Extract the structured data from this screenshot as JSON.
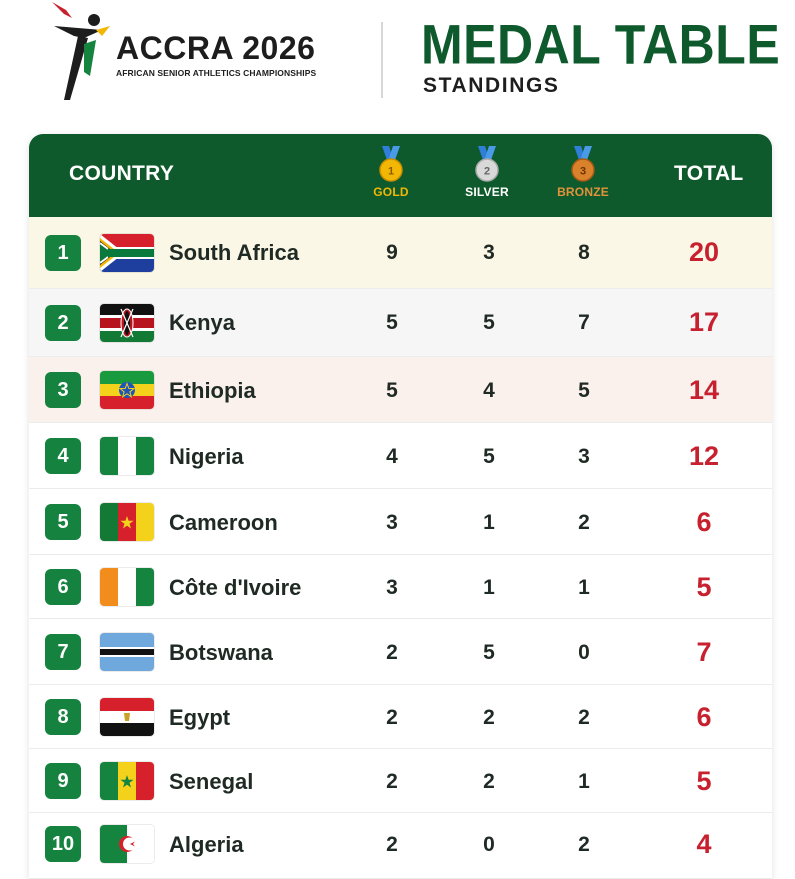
{
  "brand": {
    "title": "ACCRA 2026",
    "subtitle": "AFRICAN SENIOR ATHLETICS CHAMPIONSHIPS"
  },
  "header": {
    "title": "MEDAL TABLE",
    "subtitle": "STANDINGS"
  },
  "table": {
    "columns": {
      "country": "COUNTRY",
      "gold": "GOLD",
      "silver": "SILVER",
      "bronze": "BRONZE",
      "total": "TOTAL"
    },
    "medal_numbers": {
      "gold": "1",
      "silver": "2",
      "bronze": "3"
    },
    "colors": {
      "header_bg": "#0f5a2c",
      "rank_badge": "#16823f",
      "total_text": "#c7212f",
      "gold": "#f2b705",
      "silver": "#d9d9d9",
      "bronze": "#d9822b"
    },
    "rows": [
      {
        "rank": "1",
        "country": "South Africa",
        "flag": "south-africa-flag",
        "gold": "9",
        "silver": "3",
        "bronze": "8",
        "total": "20"
      },
      {
        "rank": "2",
        "country": "Kenya",
        "flag": "kenya-flag",
        "gold": "5",
        "silver": "5",
        "bronze": "7",
        "total": "17"
      },
      {
        "rank": "3",
        "country": "Ethiopia",
        "flag": "ethiopia-flag",
        "gold": "5",
        "silver": "4",
        "bronze": "5",
        "total": "14"
      },
      {
        "rank": "4",
        "country": "Nigeria",
        "flag": "nigeria-flag",
        "gold": "4",
        "silver": "5",
        "bronze": "3",
        "total": "12"
      },
      {
        "rank": "5",
        "country": "Cameroon",
        "flag": "cameroon-flag",
        "gold": "3",
        "silver": "1",
        "bronze": "2",
        "total": "6"
      },
      {
        "rank": "6",
        "country": "Côte d'Ivoire",
        "flag": "cote-divoire-flag",
        "gold": "3",
        "silver": "1",
        "bronze": "1",
        "total": "5"
      },
      {
        "rank": "7",
        "country": "Botswana",
        "flag": "botswana-flag",
        "gold": "2",
        "silver": "5",
        "bronze": "0",
        "total": "7"
      },
      {
        "rank": "8",
        "country": "Egypt",
        "flag": "egypt-flag",
        "gold": "2",
        "silver": "2",
        "bronze": "2",
        "total": "6"
      },
      {
        "rank": "9",
        "country": "Senegal",
        "flag": "senegal-flag",
        "gold": "2",
        "silver": "2",
        "bronze": "1",
        "total": "5"
      },
      {
        "rank": "10",
        "country": "Algeria",
        "flag": "algeria-flag",
        "gold": "2",
        "silver": "0",
        "bronze": "2",
        "total": "4"
      }
    ]
  }
}
